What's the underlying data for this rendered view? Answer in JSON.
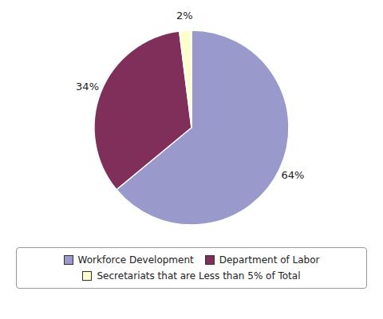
{
  "chart_data": {
    "type": "pie",
    "categories": [
      "Workforce Development",
      "Department of Labor",
      "Secretariats that are Less than 5% of Total"
    ],
    "values": [
      64,
      34,
      2
    ],
    "value_labels": [
      "64%",
      "34%",
      "2%"
    ],
    "colors": [
      "#9999cc",
      "#7f2f5a",
      "#ffffcc"
    ],
    "data_labels": true,
    "legend": "bottom"
  }
}
